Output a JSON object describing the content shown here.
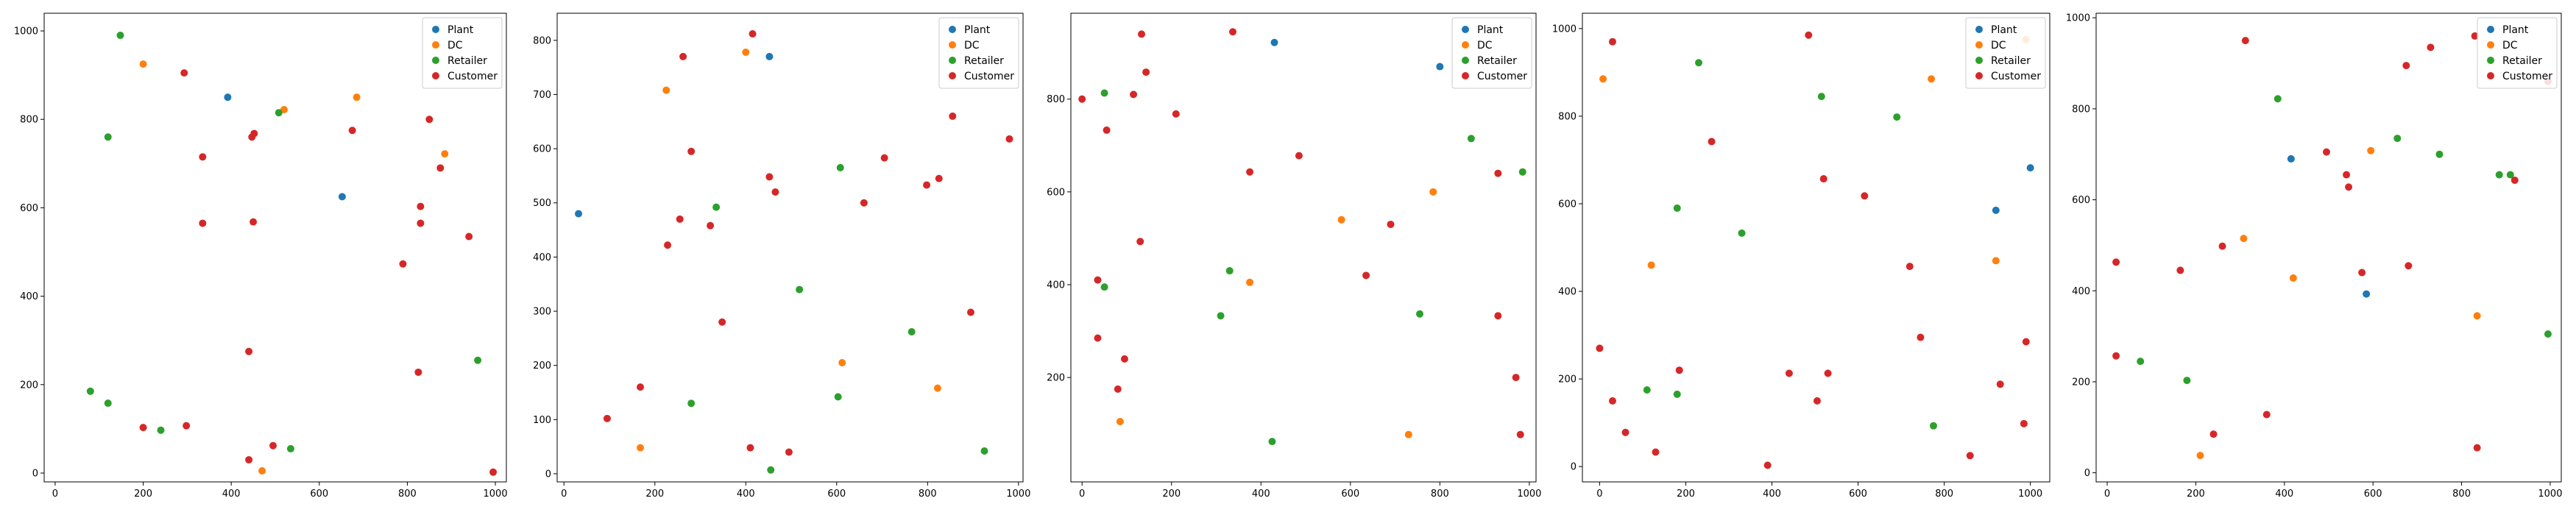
{
  "chart_data": [
    {
      "type": "scatter",
      "xlim": [
        -25,
        1025
      ],
      "ylim": [
        -20,
        1040
      ],
      "xticks": [
        0,
        200,
        400,
        600,
        800,
        1000
      ],
      "yticks": [
        0,
        200,
        400,
        600,
        800,
        1000
      ],
      "legend": "top-right",
      "series": [
        {
          "name": "Plant",
          "color": "#1f77b4",
          "points": [
            [
              392,
              850
            ],
            [
              652,
              625
            ]
          ]
        },
        {
          "name": "DC",
          "color": "#ff7f0e",
          "points": [
            [
              200,
              925
            ],
            [
              520,
              822
            ],
            [
              685,
              850
            ],
            [
              885,
              722
            ],
            [
              470,
              5
            ]
          ]
        },
        {
          "name": "Retailer",
          "color": "#2ca02c",
          "points": [
            [
              148,
              990
            ],
            [
              120,
              760
            ],
            [
              508,
              815
            ],
            [
              80,
              185
            ],
            [
              120,
              158
            ],
            [
              240,
              97
            ],
            [
              535,
              55
            ],
            [
              960,
              255
            ]
          ]
        },
        {
          "name": "Customer",
          "color": "#d62728",
          "points": [
            [
              293,
              905
            ],
            [
              452,
              768
            ],
            [
              447,
              760
            ],
            [
              675,
              775
            ],
            [
              850,
              800
            ],
            [
              335,
              715
            ],
            [
              875,
              690
            ],
            [
              335,
              565
            ],
            [
              450,
              568
            ],
            [
              830,
              603
            ],
            [
              830,
              565
            ],
            [
              940,
              535
            ],
            [
              790,
              473
            ],
            [
              440,
              275
            ],
            [
              825,
              228
            ],
            [
              200,
              103
            ],
            [
              298,
              107
            ],
            [
              495,
              62
            ],
            [
              440,
              30
            ],
            [
              995,
              2
            ]
          ]
        }
      ]
    },
    {
      "type": "scatter",
      "xlim": [
        -15,
        1010
      ],
      "ylim": [
        -15,
        850
      ],
      "xticks": [
        0,
        200,
        400,
        600,
        800,
        1000
      ],
      "yticks": [
        0,
        100,
        200,
        300,
        400,
        500,
        600,
        700,
        800
      ],
      "legend": "top-right",
      "series": [
        {
          "name": "Plant",
          "color": "#1f77b4",
          "points": [
            [
              452,
              770
            ],
            [
              32,
              480
            ]
          ]
        },
        {
          "name": "DC",
          "color": "#ff7f0e",
          "points": [
            [
              225,
              708
            ],
            [
              400,
              778
            ],
            [
              612,
              205
            ],
            [
              822,
              158
            ],
            [
              168,
              48
            ]
          ]
        },
        {
          "name": "Retailer",
          "color": "#2ca02c",
          "points": [
            [
              335,
              492
            ],
            [
              608,
              565
            ],
            [
              518,
              340
            ],
            [
              765,
              262
            ],
            [
              603,
              142
            ],
            [
              280,
              130
            ],
            [
              455,
              7
            ],
            [
              925,
              42
            ]
          ]
        },
        {
          "name": "Customer",
          "color": "#d62728",
          "points": [
            [
              415,
              812
            ],
            [
              262,
              770
            ],
            [
              280,
              595
            ],
            [
              980,
              618
            ],
            [
              855,
              660
            ],
            [
              705,
              583
            ],
            [
              825,
              545
            ],
            [
              798,
              533
            ],
            [
              452,
              548
            ],
            [
              465,
              520
            ],
            [
              660,
              500
            ],
            [
              255,
              470
            ],
            [
              322,
              458
            ],
            [
              228,
              422
            ],
            [
              348,
              280
            ],
            [
              895,
              298
            ],
            [
              168,
              160
            ],
            [
              95,
              102
            ],
            [
              410,
              48
            ],
            [
              495,
              40
            ]
          ]
        }
      ]
    },
    {
      "type": "scatter",
      "xlim": [
        -25,
        1015
      ],
      "ylim": [
        -25,
        985
      ],
      "xticks": [
        0,
        200,
        400,
        600,
        800,
        1000
      ],
      "yticks": [
        200,
        400,
        600,
        800
      ],
      "legend": "top-right",
      "series": [
        {
          "name": "Plant",
          "color": "#1f77b4",
          "points": [
            [
              430,
              922
            ],
            [
              800,
              870
            ]
          ]
        },
        {
          "name": "DC",
          "color": "#ff7f0e",
          "points": [
            [
              580,
              540
            ],
            [
              375,
              405
            ],
            [
              785,
              600
            ],
            [
              85,
              105
            ],
            [
              730,
              77
            ]
          ]
        },
        {
          "name": "Retailer",
          "color": "#2ca02c",
          "points": [
            [
              50,
              813
            ],
            [
              50,
              395
            ],
            [
              330,
              430
            ],
            [
              310,
              333
            ],
            [
              870,
              715
            ],
            [
              985,
              643
            ],
            [
              755,
              337
            ],
            [
              425,
              62
            ]
          ]
        },
        {
          "name": "Customer",
          "color": "#d62728",
          "points": [
            [
              0,
              800
            ],
            [
              133,
              940
            ],
            [
              337,
              945
            ],
            [
              55,
              733
            ],
            [
              115,
              810
            ],
            [
              143,
              858
            ],
            [
              210,
              768
            ],
            [
              485,
              678
            ],
            [
              375,
              643
            ],
            [
              930,
              640
            ],
            [
              690,
              530
            ],
            [
              130,
              493
            ],
            [
              35,
              410
            ],
            [
              635,
              420
            ],
            [
              35,
              285
            ],
            [
              95,
              240
            ],
            [
              80,
              175
            ],
            [
              930,
              333
            ],
            [
              970,
              200
            ],
            [
              980,
              77
            ]
          ]
        }
      ]
    },
    {
      "type": "scatter",
      "xlim": [
        -40,
        1045
      ],
      "ylim": [
        -35,
        1035
      ],
      "xticks": [
        0,
        200,
        400,
        600,
        800,
        1000
      ],
      "yticks": [
        0,
        200,
        400,
        600,
        800,
        1000
      ],
      "legend": "top-right",
      "series": [
        {
          "name": "Plant",
          "color": "#1f77b4",
          "points": [
            [
              1000,
              682
            ],
            [
              920,
              585
            ]
          ]
        },
        {
          "name": "DC",
          "color": "#ff7f0e",
          "points": [
            [
              8,
              885
            ],
            [
              990,
              975
            ],
            [
              770,
              885
            ],
            [
              120,
              460
            ],
            [
              920,
              470
            ]
          ]
        },
        {
          "name": "Retailer",
          "color": "#2ca02c",
          "points": [
            [
              230,
              922
            ],
            [
              515,
              845
            ],
            [
              690,
              798
            ],
            [
              180,
              590
            ],
            [
              330,
              533
            ],
            [
              110,
              175
            ],
            [
              180,
              165
            ],
            [
              775,
              93
            ]
          ]
        },
        {
          "name": "Customer",
          "color": "#d62728",
          "points": [
            [
              30,
              970
            ],
            [
              485,
              985
            ],
            [
              260,
              742
            ],
            [
              520,
              657
            ],
            [
              615,
              618
            ],
            [
              720,
              457
            ],
            [
              0,
              270
            ],
            [
              30,
              150
            ],
            [
              185,
              220
            ],
            [
              60,
              78
            ],
            [
              440,
              213
            ],
            [
              505,
              150
            ],
            [
              530,
              213
            ],
            [
              745,
              295
            ],
            [
              930,
              188
            ],
            [
              990,
              285
            ],
            [
              985,
              98
            ],
            [
              860,
              25
            ],
            [
              130,
              33
            ],
            [
              390,
              3
            ]
          ]
        }
      ]
    },
    {
      "type": "scatter",
      "xlim": [
        -25,
        1025
      ],
      "ylim": [
        -20,
        1010
      ],
      "xticks": [
        0,
        200,
        400,
        600,
        800,
        1000
      ],
      "yticks": [
        0,
        200,
        400,
        600,
        800,
        1000
      ],
      "legend": "top-right",
      "series": [
        {
          "name": "Plant",
          "color": "#1f77b4",
          "points": [
            [
              415,
              690
            ],
            [
              585,
              393
            ]
          ]
        },
        {
          "name": "DC",
          "color": "#ff7f0e",
          "points": [
            [
              595,
              708
            ],
            [
              308,
              515
            ],
            [
              420,
              428
            ],
            [
              835,
              345
            ],
            [
              210,
              38
            ]
          ]
        },
        {
          "name": "Retailer",
          "color": "#2ca02c",
          "points": [
            [
              385,
              822
            ],
            [
              655,
              735
            ],
            [
              750,
              700
            ],
            [
              885,
              655
            ],
            [
              910,
              655
            ],
            [
              75,
              245
            ],
            [
              180,
              203
            ],
            [
              995,
              305
            ]
          ]
        },
        {
          "name": "Customer",
          "color": "#d62728",
          "points": [
            [
              312,
              950
            ],
            [
              730,
              935
            ],
            [
              830,
              960
            ],
            [
              675,
              895
            ],
            [
              995,
              860
            ],
            [
              495,
              705
            ],
            [
              540,
              655
            ],
            [
              545,
              628
            ],
            [
              920,
              643
            ],
            [
              20,
              463
            ],
            [
              165,
              445
            ],
            [
              260,
              498
            ],
            [
              575,
              440
            ],
            [
              680,
              455
            ],
            [
              20,
              257
            ],
            [
              240,
              85
            ],
            [
              360,
              128
            ],
            [
              835,
              55
            ]
          ]
        }
      ]
    }
  ]
}
